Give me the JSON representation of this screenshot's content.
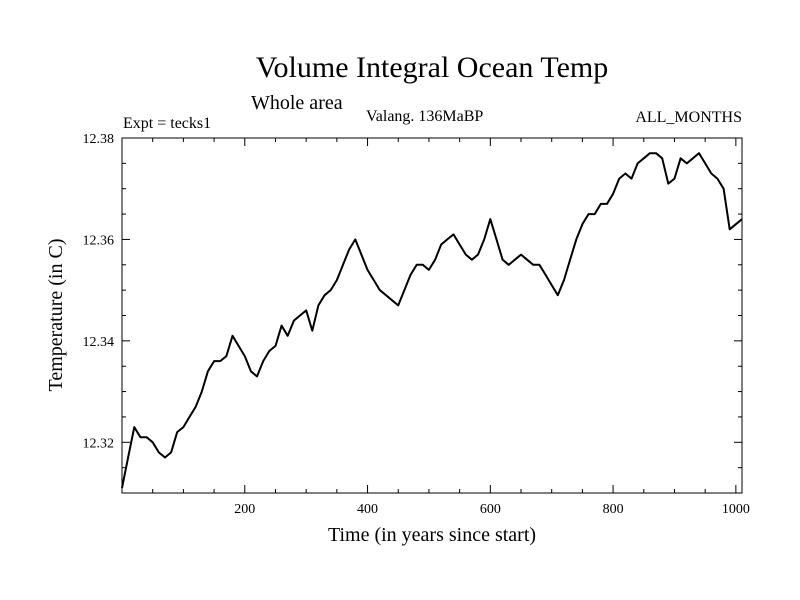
{
  "chart_data": {
    "type": "line",
    "title": "Volume Integral Ocean Temp",
    "subtitle": "Whole area",
    "expt_label": "Expt = tecks1",
    "period_label": "Valang. 136MaBP",
    "months_label": "ALL_MONTHS",
    "xlabel": "Time (in years since start)",
    "ylabel": "Temperature (in C)",
    "xlim": [
      0,
      1010
    ],
    "ylim": [
      12.31,
      12.38
    ],
    "xticks": [
      200,
      400,
      600,
      800,
      1000
    ],
    "yticks": [
      12.32,
      12.34,
      12.36,
      12.38
    ],
    "ytick_labels": [
      "12.32",
      "12.34",
      "12.36",
      "12.38"
    ],
    "series": [
      {
        "name": "Volume Integral Ocean Temp",
        "color": "#000000",
        "x": [
          0,
          10,
          20,
          30,
          40,
          50,
          60,
          70,
          80,
          90,
          100,
          110,
          120,
          130,
          140,
          150,
          160,
          170,
          180,
          190,
          200,
          210,
          220,
          230,
          240,
          250,
          260,
          270,
          280,
          290,
          300,
          310,
          320,
          330,
          340,
          350,
          360,
          370,
          380,
          390,
          400,
          410,
          420,
          430,
          440,
          450,
          460,
          470,
          480,
          490,
          500,
          510,
          520,
          530,
          540,
          550,
          560,
          570,
          580,
          590,
          600,
          610,
          620,
          630,
          640,
          650,
          660,
          670,
          680,
          690,
          700,
          710,
          720,
          730,
          740,
          750,
          760,
          770,
          780,
          790,
          800,
          810,
          820,
          830,
          840,
          850,
          860,
          870,
          880,
          890,
          900,
          910,
          920,
          930,
          940,
          950,
          960,
          970,
          980,
          990,
          1000,
          1010
        ],
        "values": [
          12.311,
          12.317,
          12.323,
          12.321,
          12.321,
          12.32,
          12.318,
          12.317,
          12.318,
          12.322,
          12.323,
          12.325,
          12.327,
          12.33,
          12.334,
          12.336,
          12.336,
          12.337,
          12.341,
          12.339,
          12.337,
          12.334,
          12.333,
          12.336,
          12.338,
          12.339,
          12.343,
          12.341,
          12.344,
          12.345,
          12.346,
          12.342,
          12.347,
          12.349,
          12.35,
          12.352,
          12.355,
          12.358,
          12.36,
          12.357,
          12.354,
          12.352,
          12.35,
          12.349,
          12.348,
          12.347,
          12.35,
          12.353,
          12.355,
          12.355,
          12.354,
          12.356,
          12.359,
          12.36,
          12.361,
          12.359,
          12.357,
          12.356,
          12.357,
          12.36,
          12.364,
          12.36,
          12.356,
          12.355,
          12.356,
          12.357,
          12.356,
          12.355,
          12.355,
          12.353,
          12.351,
          12.349,
          12.352,
          12.356,
          12.36,
          12.363,
          12.365,
          12.365,
          12.367,
          12.367,
          12.369,
          12.372,
          12.373,
          12.372,
          12.375,
          12.376,
          12.377,
          12.377,
          12.376,
          12.371,
          12.372,
          12.376,
          12.375,
          12.376,
          12.377,
          12.375,
          12.373,
          12.372,
          12.37,
          12.362,
          12.363,
          12.364
        ]
      }
    ]
  }
}
